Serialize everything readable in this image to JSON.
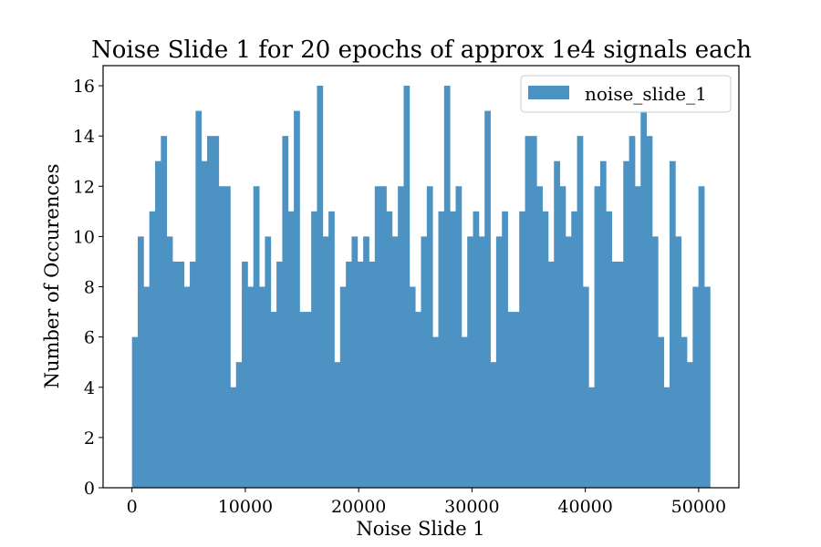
{
  "chart_data": {
    "type": "bar",
    "title": "Noise Slide 1 for 20 epochs of approx 1e4 signals each",
    "xlabel": "Noise Slide 1",
    "ylabel": "Number of Occurences",
    "xlim": [
      -2550,
      53550
    ],
    "ylim": [
      0,
      16.8
    ],
    "xticks": [
      0,
      10000,
      20000,
      30000,
      40000,
      50000
    ],
    "xtick_labels": [
      "0",
      "10000",
      "20000",
      "30000",
      "40000",
      "50000"
    ],
    "yticks": [
      0,
      2,
      4,
      6,
      8,
      10,
      12,
      14,
      16
    ],
    "ytick_labels": [
      "0",
      "2",
      "4",
      "6",
      "8",
      "10",
      "12",
      "14",
      "16"
    ],
    "grid": false,
    "legend": {
      "position": "top-right",
      "label": "noise_slide_1"
    },
    "series": [
      {
        "name": "noise_slide_1",
        "color": "#4c92c3",
        "bin_start": 0,
        "bin_width": 510,
        "values": [
          6,
          10,
          8,
          11,
          13,
          14,
          10,
          9,
          9,
          8,
          9,
          15,
          13,
          14,
          14,
          12,
          12,
          4,
          5,
          9,
          8,
          12,
          8,
          10,
          7,
          9,
          14,
          11,
          15,
          7,
          7,
          11,
          16,
          10,
          11,
          5,
          8,
          9,
          10,
          9,
          10,
          9,
          12,
          12,
          11,
          10,
          12,
          16,
          8,
          7,
          10,
          12,
          6,
          11,
          16,
          11,
          12,
          6,
          10,
          11,
          10,
          15,
          5,
          10,
          11,
          7,
          7,
          11,
          14,
          14,
          12,
          11,
          9,
          13,
          12,
          10,
          11,
          14,
          8,
          4,
          12,
          13,
          11,
          9,
          9,
          13,
          14,
          12,
          15,
          14,
          10,
          6,
          4,
          13,
          10,
          6,
          5,
          8,
          12,
          8
        ]
      }
    ]
  }
}
